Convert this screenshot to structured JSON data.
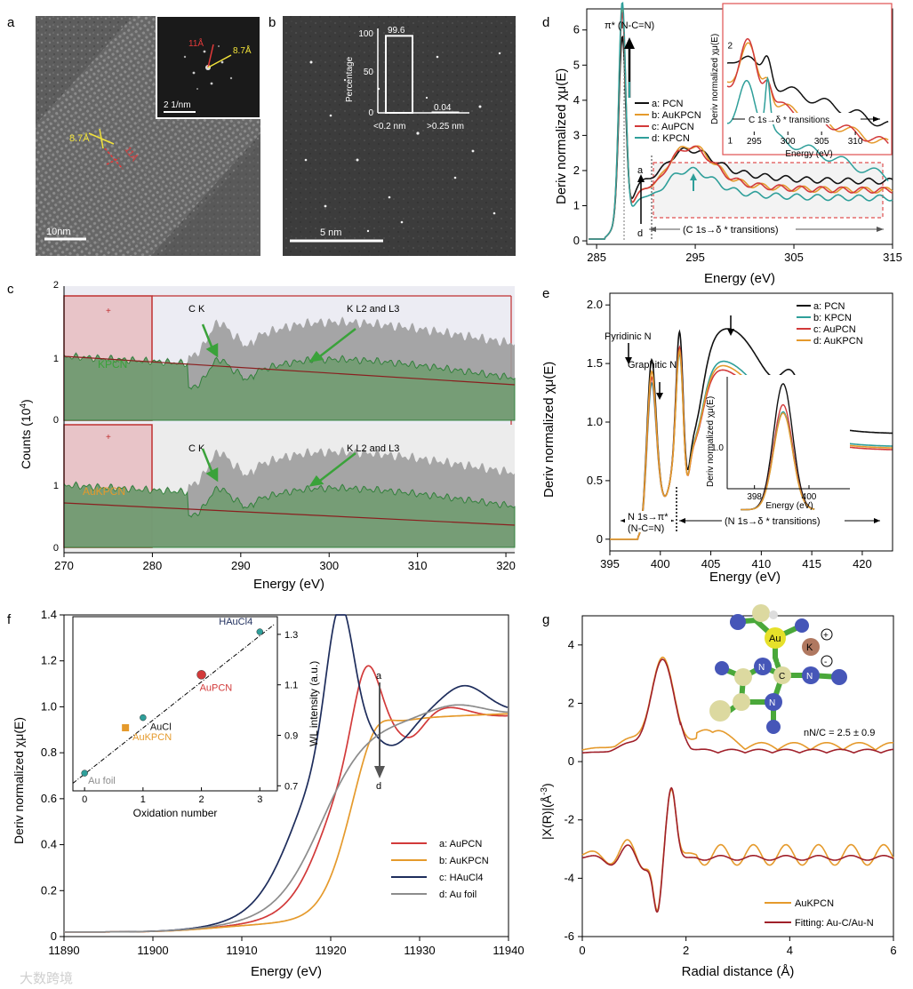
{
  "colors": {
    "red": "#d23a3a",
    "orange": "#e59a2c",
    "teal": "#2f9f9a",
    "navy": "#1e2d5c",
    "gray": "#8c8c8c",
    "black": "#111111",
    "green": "#2f8a3a",
    "pinkfill": "#e8c4c8",
    "hist_gray": "#9d9d9d",
    "hist_green": "#6e9c6e"
  },
  "panel_a": {
    "letter": "a",
    "scale_bar": "10nm",
    "d1": "8.7Å",
    "d2": "11Å",
    "fft_d1": "11Å",
    "fft_d2": "8.7Å",
    "fft_scale": "2 1/nm"
  },
  "panel_b": {
    "letter": "b",
    "scale_bar": "5 nm",
    "inset": {
      "ylabel": "Percentage",
      "yticks": [
        "0",
        "50",
        "100"
      ],
      "bar1_value": "99.6",
      "bar2_value": "0.04",
      "cat1": "<0.2 nm",
      "cat2": ">0.25 nm"
    }
  },
  "panel_c": {
    "letter": "c",
    "ylabel": "Counts (10",
    "ylabel_exp": "4",
    "ylabel_close": ")",
    "xlabel": "Energy (eV)",
    "xticks": [
      "270",
      "280",
      "290",
      "300",
      "310",
      "320"
    ],
    "top": {
      "label": "KPCN",
      "peak1": "C K",
      "peak2": "K L2 and L3",
      "yticks": [
        "0",
        "1",
        "2"
      ]
    },
    "bottom": {
      "label": "AuKPCN",
      "peak1": "C K",
      "peak2": "K L2 and L3",
      "yticks": [
        "0",
        "1"
      ]
    }
  },
  "panel_d": {
    "letter": "d",
    "ylabel": "Deriv normalized χμ(E)",
    "xlabel": "Energy (eV)",
    "xticks": [
      "285",
      "295",
      "305",
      "315"
    ],
    "yticks": [
      "0",
      "1",
      "2",
      "3",
      "4",
      "5",
      "6"
    ],
    "pi_label": "π* (N-C=N)",
    "arrow_a": "a",
    "arrow_d": "d",
    "c1s_label": "(C 1s→δ * transitions)",
    "legend": [
      "a: PCN",
      "b: AuKPCN",
      "c: AuPCN",
      "d: KPCN"
    ],
    "inset": {
      "ylabel": "Deriv normalized χμ(E)",
      "xlabel": "Energy (eV)",
      "xticks": [
        "295",
        "300",
        "305",
        "310"
      ],
      "yticks": [
        "1",
        "2"
      ],
      "transition": "C 1s→δ * transitions"
    }
  },
  "panel_e": {
    "letter": "e",
    "ylabel": "Deriv normalized χμ(E)",
    "xlabel": "Energy (eV)",
    "xticks": [
      "395",
      "400",
      "405",
      "410",
      "415",
      "420"
    ],
    "yticks": [
      "0",
      "0.5",
      "1.0",
      "1.5",
      "2.0"
    ],
    "pyridinic": "Pyridinic N",
    "graphitic": "Graphitic N",
    "n1s_pi": "N 1s→π*",
    "n1s_pi2": "(N-C=N)",
    "n1s_sigma": "(N 1s→δ * transitions)",
    "legend": [
      "a: PCN",
      "b: KPCN",
      "c: AuPCN",
      "d: AuKPCN"
    ],
    "inset": {
      "ylabel": "Deriv normalized χμ(E)",
      "xlabel": "Energy (eV)",
      "xticks": [
        "398",
        "400"
      ],
      "ytick": "1.0"
    }
  },
  "panel_f": {
    "letter": "f",
    "ylabel": "Deriv normalized χμ(E)",
    "xlabel": "Energy (eV)",
    "xticks": [
      "11890",
      "11900",
      "11910",
      "11920",
      "11930",
      "11940"
    ],
    "yticks": [
      "0",
      "0.2",
      "0.4",
      "0.6",
      "0.8",
      "1.0",
      "1.2",
      "1.4"
    ],
    "arrow_a": "a",
    "arrow_d": "d",
    "legend": [
      "a: AuPCN",
      "b: AuKPCN",
      "c: HAuCl4",
      "d: Au foil"
    ],
    "inset": {
      "xlabel": "Oxidation number",
      "ylabel": "WL intensity (a.u.)",
      "xticks": [
        "0",
        "1",
        "2",
        "3"
      ],
      "yticks": [
        "0.7",
        "0.9",
        "1.1",
        "1.3"
      ],
      "points": [
        {
          "name": "Au foil",
          "x": 0,
          "y": 0.75
        },
        {
          "name": "AuKPCN",
          "x": 0.7,
          "y": 0.93
        },
        {
          "name": "AuCl",
          "x": 1,
          "y": 0.97
        },
        {
          "name": "AuPCN",
          "x": 2,
          "y": 1.14
        },
        {
          "name": "HAuCl4",
          "x": 3,
          "y": 1.31
        }
      ]
    }
  },
  "panel_g": {
    "letter": "g",
    "ylabel": "|X(R)|(Å",
    "ylabel_exp": "-3",
    "ylabel_close": ")",
    "xlabel": "Radial distance (Å)",
    "xticks": [
      "0",
      "2",
      "4",
      "6"
    ],
    "yticks": [
      "4",
      "2",
      "0",
      "-2",
      "-4",
      "-6"
    ],
    "nnc": "nN/C = 2.5 ± 0.9",
    "legend": [
      "AuKPCN",
      "Fitting: Au-C/Au-N"
    ],
    "atoms": {
      "au": "Au",
      "k": "K",
      "c": "C",
      "n": "N",
      "plus": "+",
      "minus": "-"
    }
  },
  "watermark": "大数跨境"
}
